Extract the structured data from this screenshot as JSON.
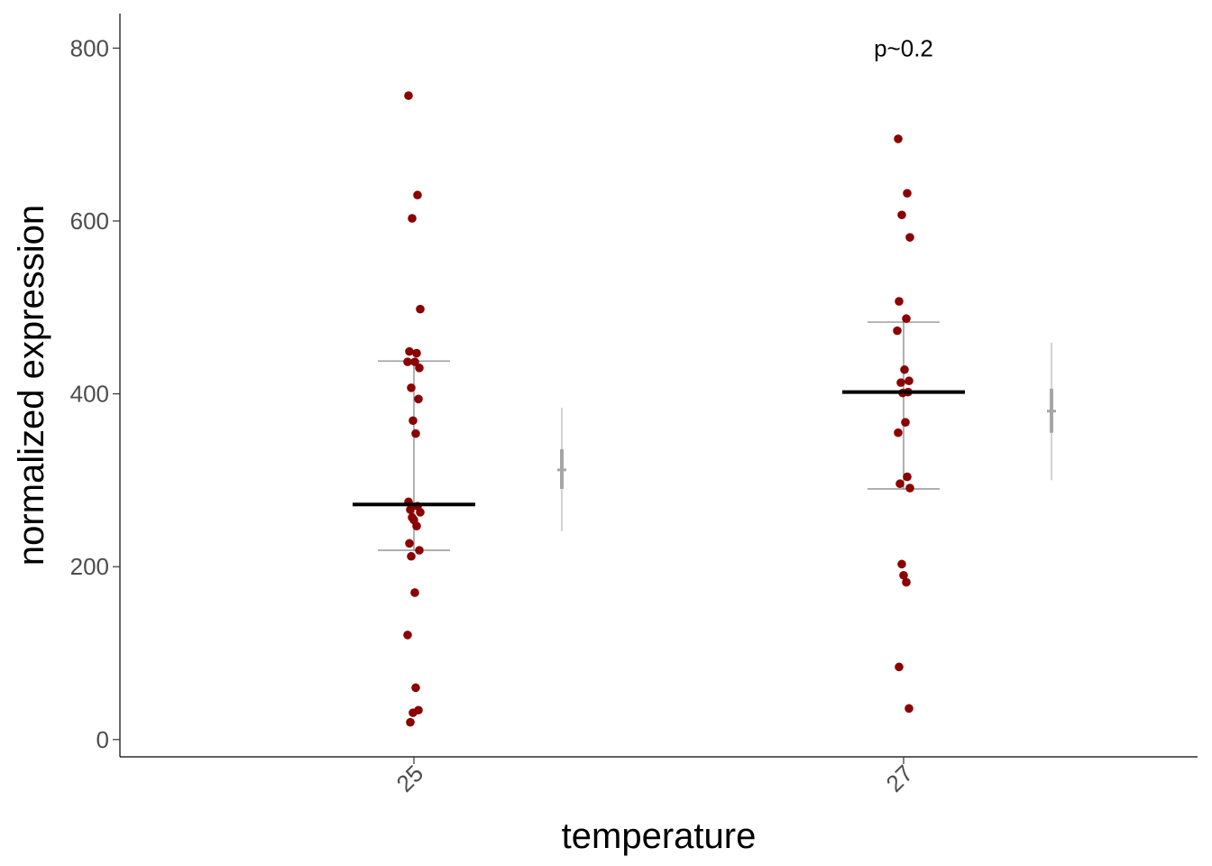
{
  "chart_data": {
    "type": "scatter",
    "title": "",
    "xlabel": "temperature",
    "ylabel": "normalized expression",
    "ylim": [
      -20,
      840
    ],
    "yticks": [
      0,
      200,
      400,
      600,
      800
    ],
    "categories": [
      "25",
      "27"
    ],
    "annotation": {
      "text": "p~0.2",
      "category": "27",
      "y": 800
    },
    "colors": {
      "point": "#8b0000",
      "median": "#000000",
      "iqr": "#7f7f7f",
      "summary": "#a6a6a6",
      "axis": "#000000"
    },
    "groups": [
      {
        "category": "25",
        "points": [
          745,
          630,
          603,
          498,
          449,
          447,
          437,
          437,
          430,
          407,
          394,
          369,
          354,
          275,
          270,
          266,
          263,
          257,
          254,
          247,
          227,
          219,
          212,
          170,
          121,
          60,
          34,
          31,
          20
        ],
        "median": 272,
        "q1": 219,
        "q3": 438,
        "summary": {
          "mean": 312,
          "se_low": 290,
          "se_high": 336,
          "ci_low": 241,
          "ci_high": 384
        }
      },
      {
        "category": "27",
        "points": [
          695,
          632,
          607,
          581,
          507,
          487,
          473,
          428,
          415,
          413,
          402,
          401,
          367,
          355,
          304,
          296,
          291,
          203,
          190,
          182,
          84,
          36
        ],
        "median": 402,
        "q1": 290,
        "q3": 483,
        "summary": {
          "mean": 380,
          "se_low": 355,
          "se_high": 406,
          "ci_low": 300,
          "ci_high": 459
        }
      }
    ]
  }
}
